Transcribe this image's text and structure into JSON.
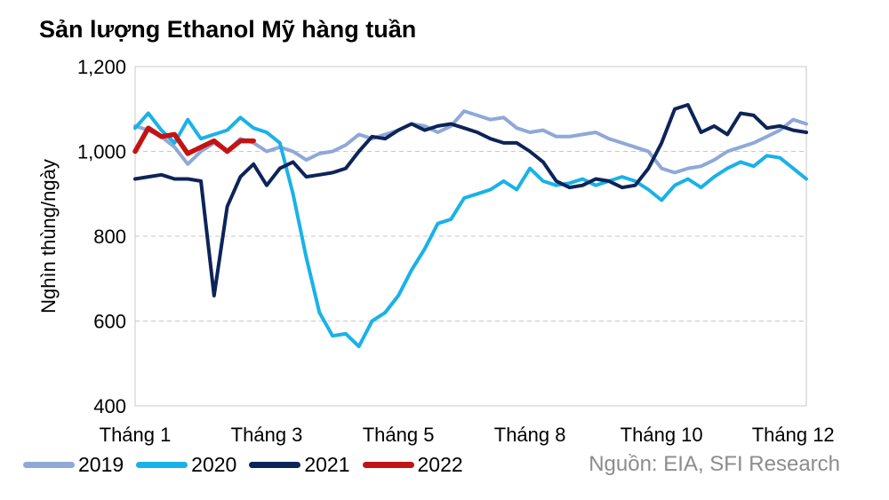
{
  "chart_data": {
    "type": "line",
    "title": "Sản lượng Ethanol Mỹ hàng tuần",
    "ylabel": "Nghìn thùng/ngày",
    "xlabel": "",
    "ylim": [
      400,
      1200
    ],
    "yticks": [
      "400",
      "600",
      "800",
      "1,000",
      "1,200"
    ],
    "ytick_values": [
      400,
      600,
      800,
      1000,
      1200
    ],
    "x_range": [
      1,
      52
    ],
    "xtick_labels": [
      "Tháng 1",
      "Tháng 3",
      "Tháng 5",
      "Tháng 8",
      "Tháng 10",
      "Tháng 12"
    ],
    "xtick_weeks": [
      1,
      11,
      21,
      31,
      41,
      51
    ],
    "grid": "horizontal dashed",
    "legend_position": "bottom",
    "series": [
      {
        "name": "2019",
        "color": "#8fa8d8",
        "x": [
          1,
          2,
          3,
          4,
          5,
          6,
          7,
          8,
          9,
          10,
          11,
          12,
          13,
          14,
          15,
          16,
          17,
          18,
          19,
          20,
          21,
          22,
          23,
          24,
          25,
          26,
          27,
          28,
          29,
          30,
          31,
          32,
          33,
          34,
          35,
          36,
          37,
          38,
          39,
          40,
          41,
          42,
          43,
          44,
          45,
          46,
          47,
          48,
          49,
          50,
          51,
          52
        ],
        "values": [
          1060,
          1050,
          1035,
          1010,
          970,
          1000,
          1020,
          1000,
          1030,
          1020,
          1000,
          1010,
          1000,
          980,
          995,
          1000,
          1015,
          1040,
          1030,
          1040,
          1050,
          1065,
          1060,
          1045,
          1060,
          1095,
          1085,
          1075,
          1080,
          1055,
          1045,
          1050,
          1035,
          1035,
          1040,
          1045,
          1030,
          1020,
          1010,
          1000,
          960,
          950,
          960,
          965,
          980,
          1000,
          1010,
          1020,
          1035,
          1050,
          1075,
          1065
        ]
      },
      {
        "name": "2020",
        "color": "#19b2e8",
        "x": [
          1,
          2,
          3,
          4,
          5,
          6,
          7,
          8,
          9,
          10,
          11,
          12,
          13,
          14,
          15,
          16,
          17,
          18,
          19,
          20,
          21,
          22,
          23,
          24,
          25,
          26,
          27,
          28,
          29,
          30,
          31,
          32,
          33,
          34,
          35,
          36,
          37,
          38,
          39,
          40,
          41,
          42,
          43,
          44,
          45,
          46,
          47,
          48,
          49,
          50,
          51,
          52
        ],
        "values": [
          1055,
          1090,
          1050,
          1020,
          1075,
          1030,
          1040,
          1050,
          1080,
          1055,
          1045,
          1020,
          900,
          750,
          620,
          565,
          570,
          540,
          600,
          620,
          660,
          720,
          770,
          830,
          840,
          890,
          900,
          910,
          930,
          910,
          960,
          930,
          920,
          925,
          935,
          920,
          930,
          940,
          930,
          910,
          885,
          920,
          935,
          915,
          940,
          960,
          975,
          965,
          990,
          985,
          960,
          935
        ]
      },
      {
        "name": "2021",
        "color": "#0d2458",
        "x": [
          1,
          2,
          3,
          4,
          5,
          6,
          7,
          8,
          9,
          10,
          11,
          12,
          13,
          14,
          15,
          16,
          17,
          18,
          19,
          20,
          21,
          22,
          23,
          24,
          25,
          26,
          27,
          28,
          29,
          30,
          31,
          32,
          33,
          34,
          35,
          36,
          37,
          38,
          39,
          40,
          41,
          42,
          43,
          44,
          45,
          46,
          47,
          48,
          49,
          50,
          51,
          52
        ],
        "values": [
          935,
          940,
          945,
          935,
          935,
          930,
          660,
          870,
          940,
          970,
          920,
          960,
          975,
          940,
          945,
          950,
          960,
          1000,
          1035,
          1030,
          1050,
          1065,
          1050,
          1060,
          1065,
          1055,
          1045,
          1030,
          1020,
          1020,
          1000,
          975,
          930,
          915,
          920,
          935,
          930,
          915,
          920,
          960,
          1020,
          1100,
          1110,
          1045,
          1060,
          1040,
          1090,
          1085,
          1055,
          1060,
          1050,
          1045
        ]
      },
      {
        "name": "2022",
        "color": "#c41313",
        "x": [
          1,
          2,
          3,
          4,
          5,
          6,
          7,
          8,
          9,
          10
        ],
        "values": [
          1000,
          1055,
          1035,
          1040,
          995,
          1010,
          1025,
          1000,
          1025,
          1025
        ]
      }
    ],
    "source": "Nguồn: EIA, SFI Research"
  }
}
